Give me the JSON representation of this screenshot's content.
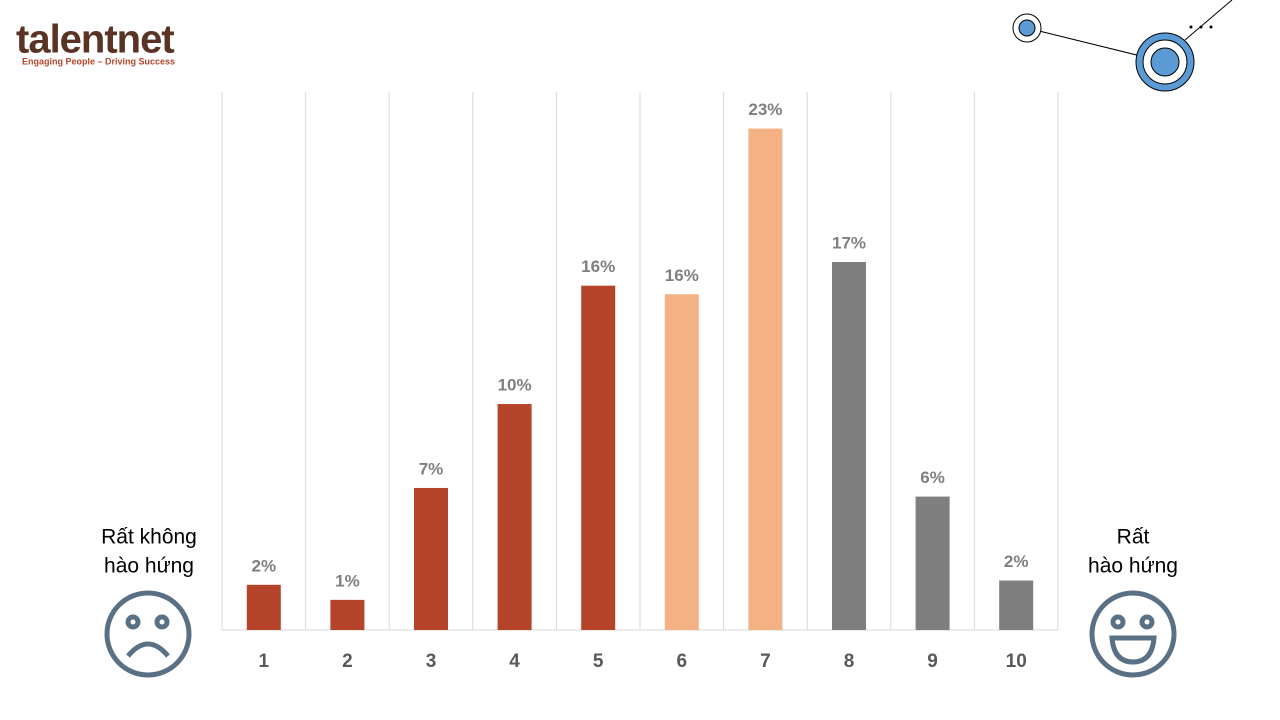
{
  "logo": {
    "name": "talentnet",
    "tagline": "Engaging People – Driving Success"
  },
  "chart_data": {
    "type": "bar",
    "categories": [
      "1",
      "2",
      "3",
      "4",
      "5",
      "6",
      "7",
      "8",
      "9",
      "10"
    ],
    "values": [
      2.1,
      1.4,
      6.6,
      10.5,
      16.0,
      15.6,
      23.3,
      17.1,
      6.2,
      2.3
    ],
    "value_labels": [
      "2%",
      "1%",
      "7%",
      "10%",
      "16%",
      "16%",
      "23%",
      "17%",
      "6%",
      "2%"
    ],
    "colors": [
      "#b5442a",
      "#b5442a",
      "#b5442a",
      "#b5442a",
      "#b5442a",
      "#f4b183",
      "#f4b183",
      "#7f7f7f",
      "#7f7f7f",
      "#7f7f7f"
    ],
    "ylim": [
      0,
      25
    ],
    "grid": true,
    "annotations": {
      "left": [
        "Rất không",
        "hào hứng"
      ],
      "right": [
        "Rất",
        "hào hứng"
      ]
    }
  }
}
